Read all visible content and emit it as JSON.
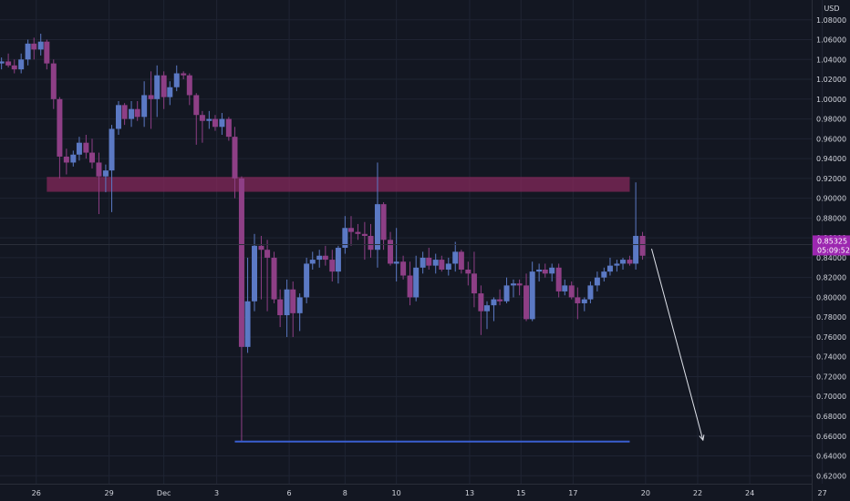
{
  "chart_data": {
    "type": "candlestick",
    "currency": "USD",
    "y_ticks": [
      "1.08000",
      "1.06000",
      "1.04000",
      "1.02000",
      "1.00000",
      "0.98000",
      "0.96000",
      "0.94000",
      "0.92000",
      "0.90000",
      "0.88000",
      "0.86000",
      "0.84000",
      "0.82000",
      "0.80000",
      "0.78000",
      "0.76000",
      "0.74000",
      "0.72000",
      "0.70000",
      "0.68000",
      "0.66000",
      "0.64000",
      "0.62000"
    ],
    "ylim": [
      0.612,
      1.1
    ],
    "x_ticks": [
      {
        "label": "26",
        "x": 0
      },
      {
        "label": "29",
        "x": 9.65
      },
      {
        "label": "Dec",
        "x": 16.9
      },
      {
        "label": "3",
        "x": 23.9
      },
      {
        "label": "6",
        "x": 33.5
      },
      {
        "label": "8",
        "x": 40.9
      },
      {
        "label": "10",
        "x": 47.7
      },
      {
        "label": "13",
        "x": 57.4
      },
      {
        "label": "15",
        "x": 64.2
      },
      {
        "label": "17",
        "x": 71.1
      },
      {
        "label": "20",
        "x": 80.7
      },
      {
        "label": "22",
        "x": 87.6
      },
      {
        "label": "24",
        "x": 94.5
      },
      {
        "label": "27",
        "x": 104.1
      }
    ],
    "xlim": [
      -4.8,
      102.7
    ],
    "price_label": {
      "value": "0.85325",
      "time": "05:09:52",
      "price": 0.8533
    },
    "candles": [
      [
        -4.6,
        1.036,
        1.042,
        1.03,
        1.038
      ],
      [
        -3.7,
        1.038,
        1.046,
        1.032,
        1.034
      ],
      [
        -2.9,
        1.034,
        1.04,
        1.026,
        1.03
      ],
      [
        -2.0,
        1.03,
        1.046,
        1.026,
        1.04
      ],
      [
        -1.1,
        1.04,
        1.06,
        1.034,
        1.056
      ],
      [
        -0.3,
        1.056,
        1.062,
        1.04,
        1.05
      ],
      [
        0.6,
        1.05,
        1.066,
        1.044,
        1.058
      ],
      [
        1.4,
        1.058,
        1.06,
        1.03,
        1.036
      ],
      [
        2.3,
        1.036,
        1.04,
        0.99,
        1.0
      ],
      [
        3.1,
        1.0,
        1.002,
        0.92,
        0.942
      ],
      [
        4.0,
        0.942,
        0.95,
        0.924,
        0.936
      ],
      [
        4.9,
        0.936,
        0.948,
        0.932,
        0.944
      ],
      [
        5.7,
        0.944,
        0.962,
        0.938,
        0.956
      ],
      [
        6.6,
        0.956,
        0.964,
        0.94,
        0.946
      ],
      [
        7.4,
        0.946,
        0.96,
        0.93,
        0.936
      ],
      [
        8.3,
        0.936,
        0.946,
        0.884,
        0.922
      ],
      [
        9.2,
        0.922,
        0.934,
        0.906,
        0.928
      ],
      [
        10.0,
        0.928,
        0.974,
        0.886,
        0.97
      ],
      [
        10.9,
        0.97,
        0.998,
        0.964,
        0.994
      ],
      [
        11.7,
        0.994,
        0.996,
        0.974,
        0.98
      ],
      [
        12.6,
        0.98,
        0.998,
        0.972,
        0.99
      ],
      [
        13.4,
        0.99,
        0.998,
        0.978,
        0.982
      ],
      [
        14.3,
        0.982,
        1.018,
        0.972,
        1.004
      ],
      [
        15.2,
        1.004,
        1.028,
        0.97,
        1.0
      ],
      [
        16.0,
        1.0,
        1.034,
        0.982,
        1.024
      ],
      [
        16.9,
        1.024,
        1.028,
        0.99,
        1.002
      ],
      [
        17.7,
        1.002,
        1.018,
        0.994,
        1.012
      ],
      [
        18.6,
        1.012,
        1.034,
        1.008,
        1.026
      ],
      [
        19.5,
        1.026,
        1.028,
        1.02,
        1.024
      ],
      [
        20.3,
        1.024,
        1.026,
        0.994,
        1.004
      ],
      [
        21.2,
        1.004,
        1.006,
        0.954,
        0.984
      ],
      [
        22.0,
        0.984,
        0.988,
        0.956,
        0.978
      ],
      [
        22.9,
        0.978,
        0.988,
        0.97,
        0.98
      ],
      [
        23.7,
        0.98,
        0.984,
        0.968,
        0.972
      ],
      [
        24.6,
        0.972,
        0.986,
        0.964,
        0.98
      ],
      [
        25.5,
        0.98,
        0.982,
        0.958,
        0.962
      ],
      [
        26.3,
        0.962,
        0.972,
        0.9,
        0.92
      ],
      [
        27.2,
        0.92,
        0.922,
        0.654,
        0.75
      ],
      [
        28.0,
        0.75,
        0.84,
        0.744,
        0.796
      ],
      [
        28.9,
        0.796,
        0.864,
        0.786,
        0.852
      ],
      [
        29.8,
        0.852,
        0.862,
        0.798,
        0.848
      ],
      [
        30.6,
        0.848,
        0.858,
        0.786,
        0.84
      ],
      [
        31.5,
        0.84,
        0.846,
        0.794,
        0.798
      ],
      [
        32.3,
        0.798,
        0.808,
        0.77,
        0.782
      ],
      [
        33.2,
        0.782,
        0.818,
        0.76,
        0.808
      ],
      [
        34.0,
        0.808,
        0.816,
        0.76,
        0.784
      ],
      [
        34.9,
        0.784,
        0.804,
        0.766,
        0.8
      ],
      [
        35.8,
        0.8,
        0.84,
        0.794,
        0.834
      ],
      [
        36.6,
        0.834,
        0.846,
        0.828,
        0.838
      ],
      [
        37.5,
        0.838,
        0.848,
        0.83,
        0.842
      ],
      [
        38.3,
        0.842,
        0.852,
        0.832,
        0.838
      ],
      [
        39.2,
        0.838,
        0.848,
        0.816,
        0.826
      ],
      [
        40.0,
        0.826,
        0.852,
        0.814,
        0.85
      ],
      [
        40.9,
        0.85,
        0.882,
        0.844,
        0.87
      ],
      [
        41.7,
        0.87,
        0.882,
        0.852,
        0.866
      ],
      [
        42.6,
        0.866,
        0.874,
        0.858,
        0.864
      ],
      [
        43.5,
        0.864,
        0.876,
        0.838,
        0.862
      ],
      [
        44.3,
        0.862,
        0.874,
        0.84,
        0.848
      ],
      [
        45.2,
        0.848,
        0.936,
        0.83,
        0.894
      ],
      [
        46.0,
        0.894,
        0.896,
        0.848,
        0.858
      ],
      [
        46.9,
        0.858,
        0.866,
        0.832,
        0.834
      ],
      [
        47.7,
        0.834,
        0.87,
        0.816,
        0.836
      ],
      [
        48.6,
        0.836,
        0.842,
        0.818,
        0.822
      ],
      [
        49.5,
        0.822,
        0.836,
        0.792,
        0.8
      ],
      [
        50.3,
        0.8,
        0.842,
        0.796,
        0.83
      ],
      [
        51.2,
        0.83,
        0.846,
        0.824,
        0.84
      ],
      [
        52.0,
        0.84,
        0.85,
        0.828,
        0.832
      ],
      [
        52.9,
        0.832,
        0.844,
        0.824,
        0.838
      ],
      [
        53.7,
        0.838,
        0.842,
        0.826,
        0.828
      ],
      [
        54.6,
        0.828,
        0.84,
        0.822,
        0.834
      ],
      [
        55.5,
        0.834,
        0.856,
        0.826,
        0.846
      ],
      [
        56.3,
        0.846,
        0.848,
        0.824,
        0.828
      ],
      [
        57.2,
        0.828,
        0.836,
        0.812,
        0.824
      ],
      [
        58.0,
        0.824,
        0.846,
        0.79,
        0.804
      ],
      [
        58.9,
        0.804,
        0.812,
        0.762,
        0.786
      ],
      [
        59.7,
        0.786,
        0.796,
        0.768,
        0.792
      ],
      [
        60.6,
        0.792,
        0.8,
        0.776,
        0.798
      ],
      [
        61.4,
        0.798,
        0.808,
        0.792,
        0.796
      ],
      [
        62.3,
        0.796,
        0.82,
        0.794,
        0.812
      ],
      [
        63.2,
        0.812,
        0.818,
        0.8,
        0.814
      ],
      [
        64.0,
        0.814,
        0.818,
        0.802,
        0.812
      ],
      [
        64.9,
        0.812,
        0.824,
        0.776,
        0.778
      ],
      [
        65.7,
        0.778,
        0.836,
        0.776,
        0.826
      ],
      [
        66.6,
        0.826,
        0.834,
        0.816,
        0.828
      ],
      [
        67.4,
        0.828,
        0.834,
        0.82,
        0.824
      ],
      [
        68.3,
        0.824,
        0.834,
        0.816,
        0.83
      ],
      [
        69.2,
        0.83,
        0.834,
        0.8,
        0.806
      ],
      [
        70.0,
        0.806,
        0.818,
        0.802,
        0.812
      ],
      [
        70.9,
        0.812,
        0.816,
        0.798,
        0.8
      ],
      [
        71.7,
        0.8,
        0.81,
        0.778,
        0.794
      ],
      [
        72.6,
        0.794,
        0.8,
        0.786,
        0.798
      ],
      [
        73.4,
        0.798,
        0.816,
        0.794,
        0.812
      ],
      [
        74.3,
        0.812,
        0.826,
        0.806,
        0.82
      ],
      [
        75.2,
        0.82,
        0.83,
        0.816,
        0.826
      ],
      [
        76.0,
        0.826,
        0.84,
        0.822,
        0.832
      ],
      [
        76.9,
        0.832,
        0.838,
        0.826,
        0.834
      ],
      [
        77.7,
        0.834,
        0.84,
        0.828,
        0.838
      ],
      [
        78.6,
        0.838,
        0.842,
        0.832,
        0.834
      ],
      [
        79.4,
        0.834,
        0.916,
        0.828,
        0.862
      ],
      [
        80.3,
        0.862,
        0.866,
        0.838,
        0.842
      ]
    ],
    "zones": [
      {
        "from": 0.9065,
        "to": 0.9215,
        "x0": 1.4,
        "x1": 78.6,
        "color": "#8c2a5e"
      }
    ],
    "lines": [
      {
        "y": 0.6545,
        "x0": 26.3,
        "x1": 78.6,
        "color": "#3a5fd0"
      }
    ],
    "arrows": [
      {
        "x0": 81.5,
        "y0": 0.849,
        "x1": 88.3,
        "y1": 0.656,
        "color": "#e0e3eb"
      }
    ],
    "colors": {
      "background": "#131722",
      "up": "#5b79c4",
      "down": "#8e3f86",
      "grid": "#1f2433",
      "badge": "#9c27b0"
    }
  }
}
